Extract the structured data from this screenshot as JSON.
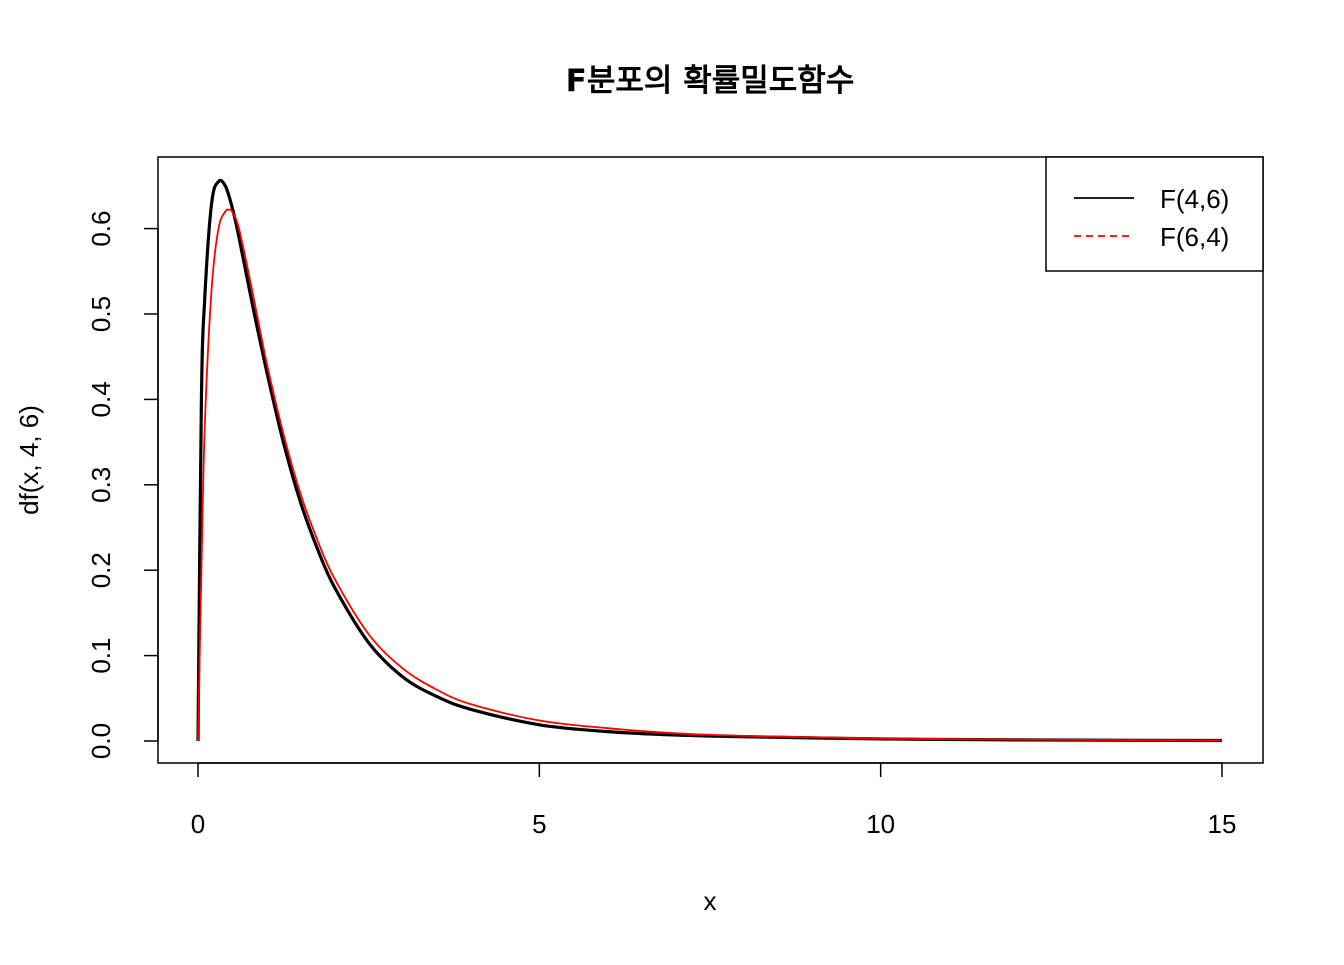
{
  "chart_data": {
    "type": "line",
    "title": "F분포의 확률밀도함수",
    "xlabel": "x",
    "ylabel": "df(x, 4, 6)",
    "xlim": [
      0,
      15
    ],
    "ylim": [
      0,
      0.65
    ],
    "x_ticks": [
      "0",
      "5",
      "10",
      "15"
    ],
    "y_ticks": [
      "0.0",
      "0.1",
      "0.2",
      "0.3",
      "0.4",
      "0.5",
      "0.6"
    ],
    "grid": false,
    "legend_position": "top-right",
    "series": [
      {
        "name": "F(4,6)",
        "color": "#000000",
        "line_style": "solid",
        "x": [
          0,
          0.05,
          0.1,
          0.2,
          0.3,
          0.4,
          0.5,
          0.6,
          0.8,
          1.0,
          1.25,
          1.5,
          1.75,
          2.0,
          2.5,
          3.0,
          3.5,
          4.0,
          5.0,
          6.0,
          7.0,
          8.0,
          10.0,
          12.0,
          15.0
        ],
        "values": [
          0,
          0.4,
          0.52,
          0.63,
          0.655,
          0.65,
          0.625,
          0.59,
          0.51,
          0.435,
          0.35,
          0.28,
          0.225,
          0.18,
          0.115,
          0.075,
          0.052,
          0.037,
          0.019,
          0.011,
          0.007,
          0.005,
          0.0025,
          0.0013,
          0.0006
        ]
      },
      {
        "name": "F(6,4)",
        "color": "#ff0000",
        "line_style": "dashed",
        "x": [
          0,
          0.05,
          0.1,
          0.2,
          0.3,
          0.4,
          0.45,
          0.5,
          0.6,
          0.8,
          1.0,
          1.25,
          1.5,
          1.75,
          2.0,
          2.5,
          3.0,
          3.5,
          4.0,
          5.0,
          6.0,
          7.0,
          8.0,
          10.0,
          12.0,
          15.0
        ],
        "values": [
          0,
          0.2,
          0.37,
          0.53,
          0.6,
          0.62,
          0.622,
          0.62,
          0.6,
          0.525,
          0.445,
          0.36,
          0.29,
          0.235,
          0.19,
          0.125,
          0.085,
          0.06,
          0.043,
          0.024,
          0.015,
          0.009,
          0.006,
          0.003,
          0.0016,
          0.0007
        ]
      }
    ]
  }
}
